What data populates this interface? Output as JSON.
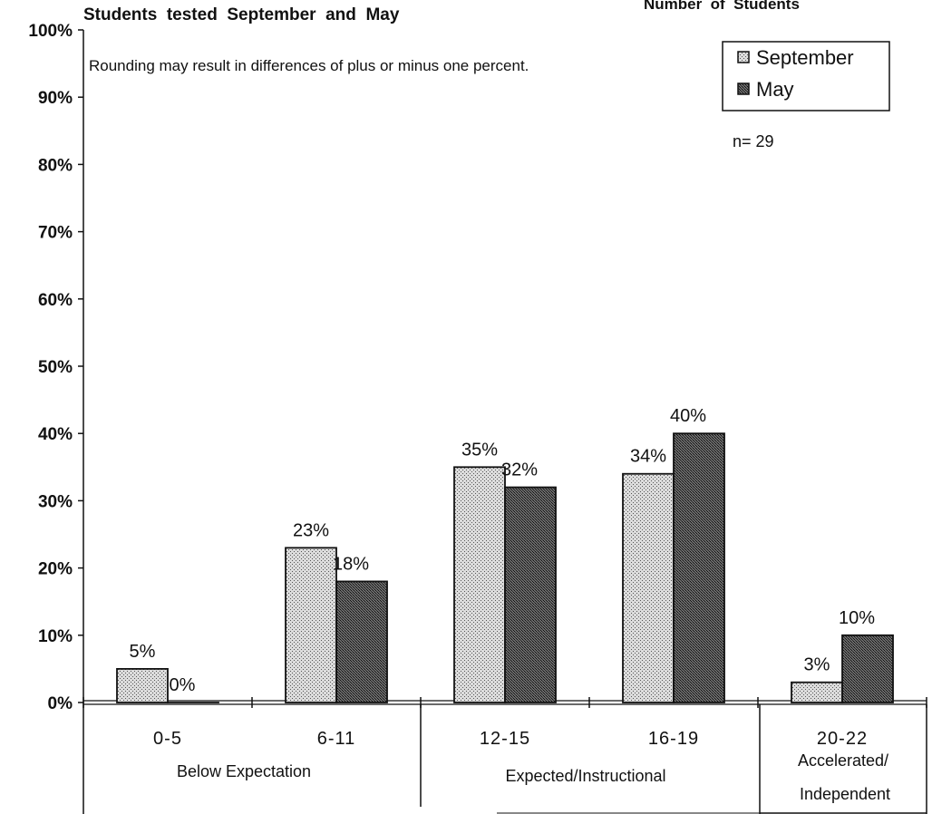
{
  "chart_data": {
    "type": "bar",
    "title": "Students  tested  September  and  May",
    "top_right_label": "Number  of  Students",
    "note": "Rounding may result in differences of plus or minus one percent.",
    "n_label": "n= 29",
    "categories": [
      "0-5",
      "6-11",
      "12-15",
      "16-19",
      "20-22"
    ],
    "series": [
      {
        "name": "September",
        "values": [
          5,
          23,
          35,
          34,
          3
        ],
        "labels": [
          "5%",
          "23%",
          "35%",
          "34%",
          "3%"
        ]
      },
      {
        "name": "May",
        "values": [
          0,
          18,
          32,
          40,
          10
        ],
        "labels": [
          "0%",
          "18%",
          "32%",
          "40%",
          "10%"
        ]
      }
    ],
    "yticks": [
      "0%",
      "10%",
      "20%",
      "30%",
      "40%",
      "50%",
      "60%",
      "70%",
      "80%",
      "90%",
      "100%"
    ],
    "ylim": [
      0,
      100
    ],
    "groups": [
      "Below Expectation",
      "Expected/Instructional",
      "Accelerated/",
      "Independent"
    ],
    "legend_position": "top-right",
    "grid": false
  }
}
